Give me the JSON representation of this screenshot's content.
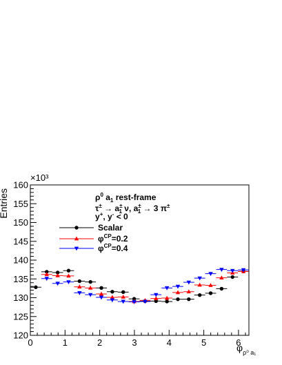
{
  "chart_data": {
    "type": "scatter",
    "title": "",
    "xlabel": "φ_{ρ⁰ a₁}",
    "ylabel": "Entries",
    "y_multiplier": "×10³",
    "xlim": [
      0,
      6.3
    ],
    "ylim": [
      120,
      160
    ],
    "x_ticks": [
      0,
      1,
      2,
      3,
      4,
      5,
      6
    ],
    "y_ticks": [
      120,
      125,
      130,
      135,
      140,
      145,
      150,
      155,
      160
    ],
    "grid": false,
    "legend_position": "upper-left inside plot",
    "annotations": [
      "ρ⁰ a₁ rest-frame",
      "τ± → a₁± ν, a₁± → 3 π±",
      "y⁺ y⁻ < 0"
    ],
    "series": [
      {
        "name": "Scalar",
        "color": "#000000",
        "marker": "circle",
        "x": [
          0.1575,
          0.4725,
          0.7875,
          1.1025,
          1.4175,
          1.7325,
          2.0475,
          2.3625,
          2.6775,
          2.9925,
          3.3075,
          3.6225,
          3.9375,
          4.2525,
          4.5675,
          4.8825,
          5.1975,
          5.5125,
          5.8275,
          6.1425
        ],
        "values": [
          132.8,
          136.9,
          136.7,
          137.2,
          134.4,
          134.2,
          132.6,
          131.6,
          131.5,
          129.7,
          129.1,
          129.1,
          129.0,
          129.6,
          129.6,
          130.7,
          131.2,
          132.4,
          135.5,
          137.0
        ]
      },
      {
        "name": "φ^CP=0.2",
        "color": "#ff0000",
        "marker": "triangle-up",
        "x": [
          0.4725,
          0.7875,
          1.1025,
          1.4175,
          1.7325,
          2.0475,
          2.3625,
          2.6775,
          2.9925,
          3.3075,
          3.6225,
          3.9375,
          4.2525,
          4.5675,
          4.8825,
          5.1975,
          5.5125,
          5.8275,
          6.1425
        ],
        "values": [
          136.2,
          135.9,
          135.8,
          132.9,
          132.6,
          131.0,
          130.1,
          130.2,
          129.0,
          129.3,
          129.8,
          129.9,
          131.4,
          131.6,
          133.4,
          133.3,
          135.3,
          136.6,
          137.0
        ]
      },
      {
        "name": "φ^CP=0.4",
        "color": "#0000ff",
        "marker": "triangle-down",
        "x": [
          0.4725,
          0.7875,
          1.1025,
          1.4175,
          1.7325,
          2.0475,
          2.3625,
          2.6775,
          2.9925,
          3.3075,
          3.6225,
          3.9375,
          4.2525,
          4.5675,
          4.8825,
          5.1975,
          5.5125,
          5.8275,
          6.1425
        ],
        "values": [
          135.1,
          133.8,
          134.2,
          131.3,
          130.8,
          130.1,
          129.4,
          129.0,
          128.9,
          129.0,
          130.8,
          132.6,
          133.0,
          134.1,
          135.2,
          136.4,
          137.5,
          137.2,
          137.4
        ]
      }
    ]
  }
}
